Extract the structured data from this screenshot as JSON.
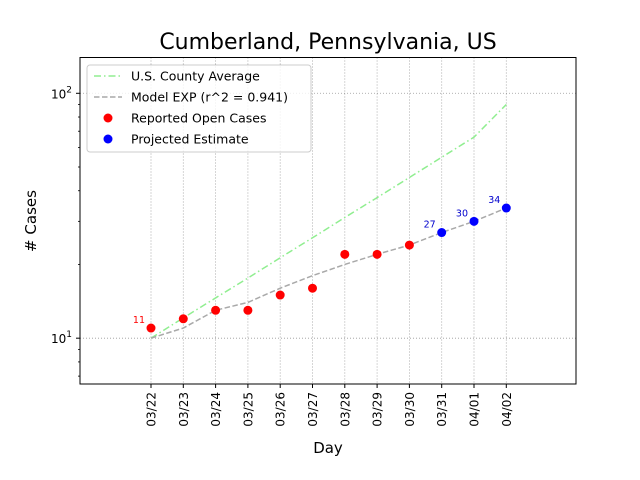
{
  "chart_data": {
    "type": "line",
    "title": "Cumberland, Pennsylvania, US",
    "xlabel": "Day",
    "ylabel": "# Cases",
    "yscale": "log",
    "ylim": [
      6.5,
      140
    ],
    "y_ticks": [
      {
        "value": 10,
        "base": "10",
        "exp": "1"
      },
      {
        "value": 100,
        "base": "10",
        "exp": "2"
      }
    ],
    "grid": true,
    "legend_position": "top-left",
    "categories": [
      "03/22",
      "03/23",
      "03/24",
      "03/25",
      "03/26",
      "03/27",
      "03/28",
      "03/29",
      "03/30",
      "03/31",
      "04/01",
      "04/02"
    ],
    "series": [
      {
        "name": "U.S. County Average",
        "style": "dashdot",
        "color": "#90ee90",
        "values": [
          10,
          12.1,
          14.6,
          17.6,
          21.3,
          25.7,
          31.1,
          37.5,
          45.3,
          54.8,
          66.2,
          90
        ]
      },
      {
        "name": "Model EXP (r^2 = 0.941)",
        "style": "dashed",
        "color": "#a9a9a9",
        "values": [
          10,
          11,
          13,
          14,
          16,
          18,
          20,
          22,
          24,
          27,
          30,
          34
        ]
      },
      {
        "name": "Reported Open Cases",
        "style": "marker",
        "color": "#ff0000",
        "values": [
          11,
          12,
          13,
          13,
          15,
          16,
          22,
          22,
          24,
          null,
          null,
          null
        ]
      },
      {
        "name": "Projected Estimate",
        "style": "marker",
        "color": "#0000ff",
        "values": [
          null,
          null,
          null,
          null,
          null,
          null,
          null,
          null,
          null,
          27,
          30,
          34
        ]
      }
    ],
    "annotations": [
      {
        "category": "03/22",
        "value": 11,
        "text": "11",
        "color": "#ff0000"
      },
      {
        "category": "03/31",
        "value": 27,
        "text": "27",
        "color": "#0000cd"
      },
      {
        "category": "04/01",
        "value": 30,
        "text": "30",
        "color": "#0000cd"
      },
      {
        "category": "04/02",
        "value": 34,
        "text": "34",
        "color": "#0000cd"
      }
    ]
  }
}
